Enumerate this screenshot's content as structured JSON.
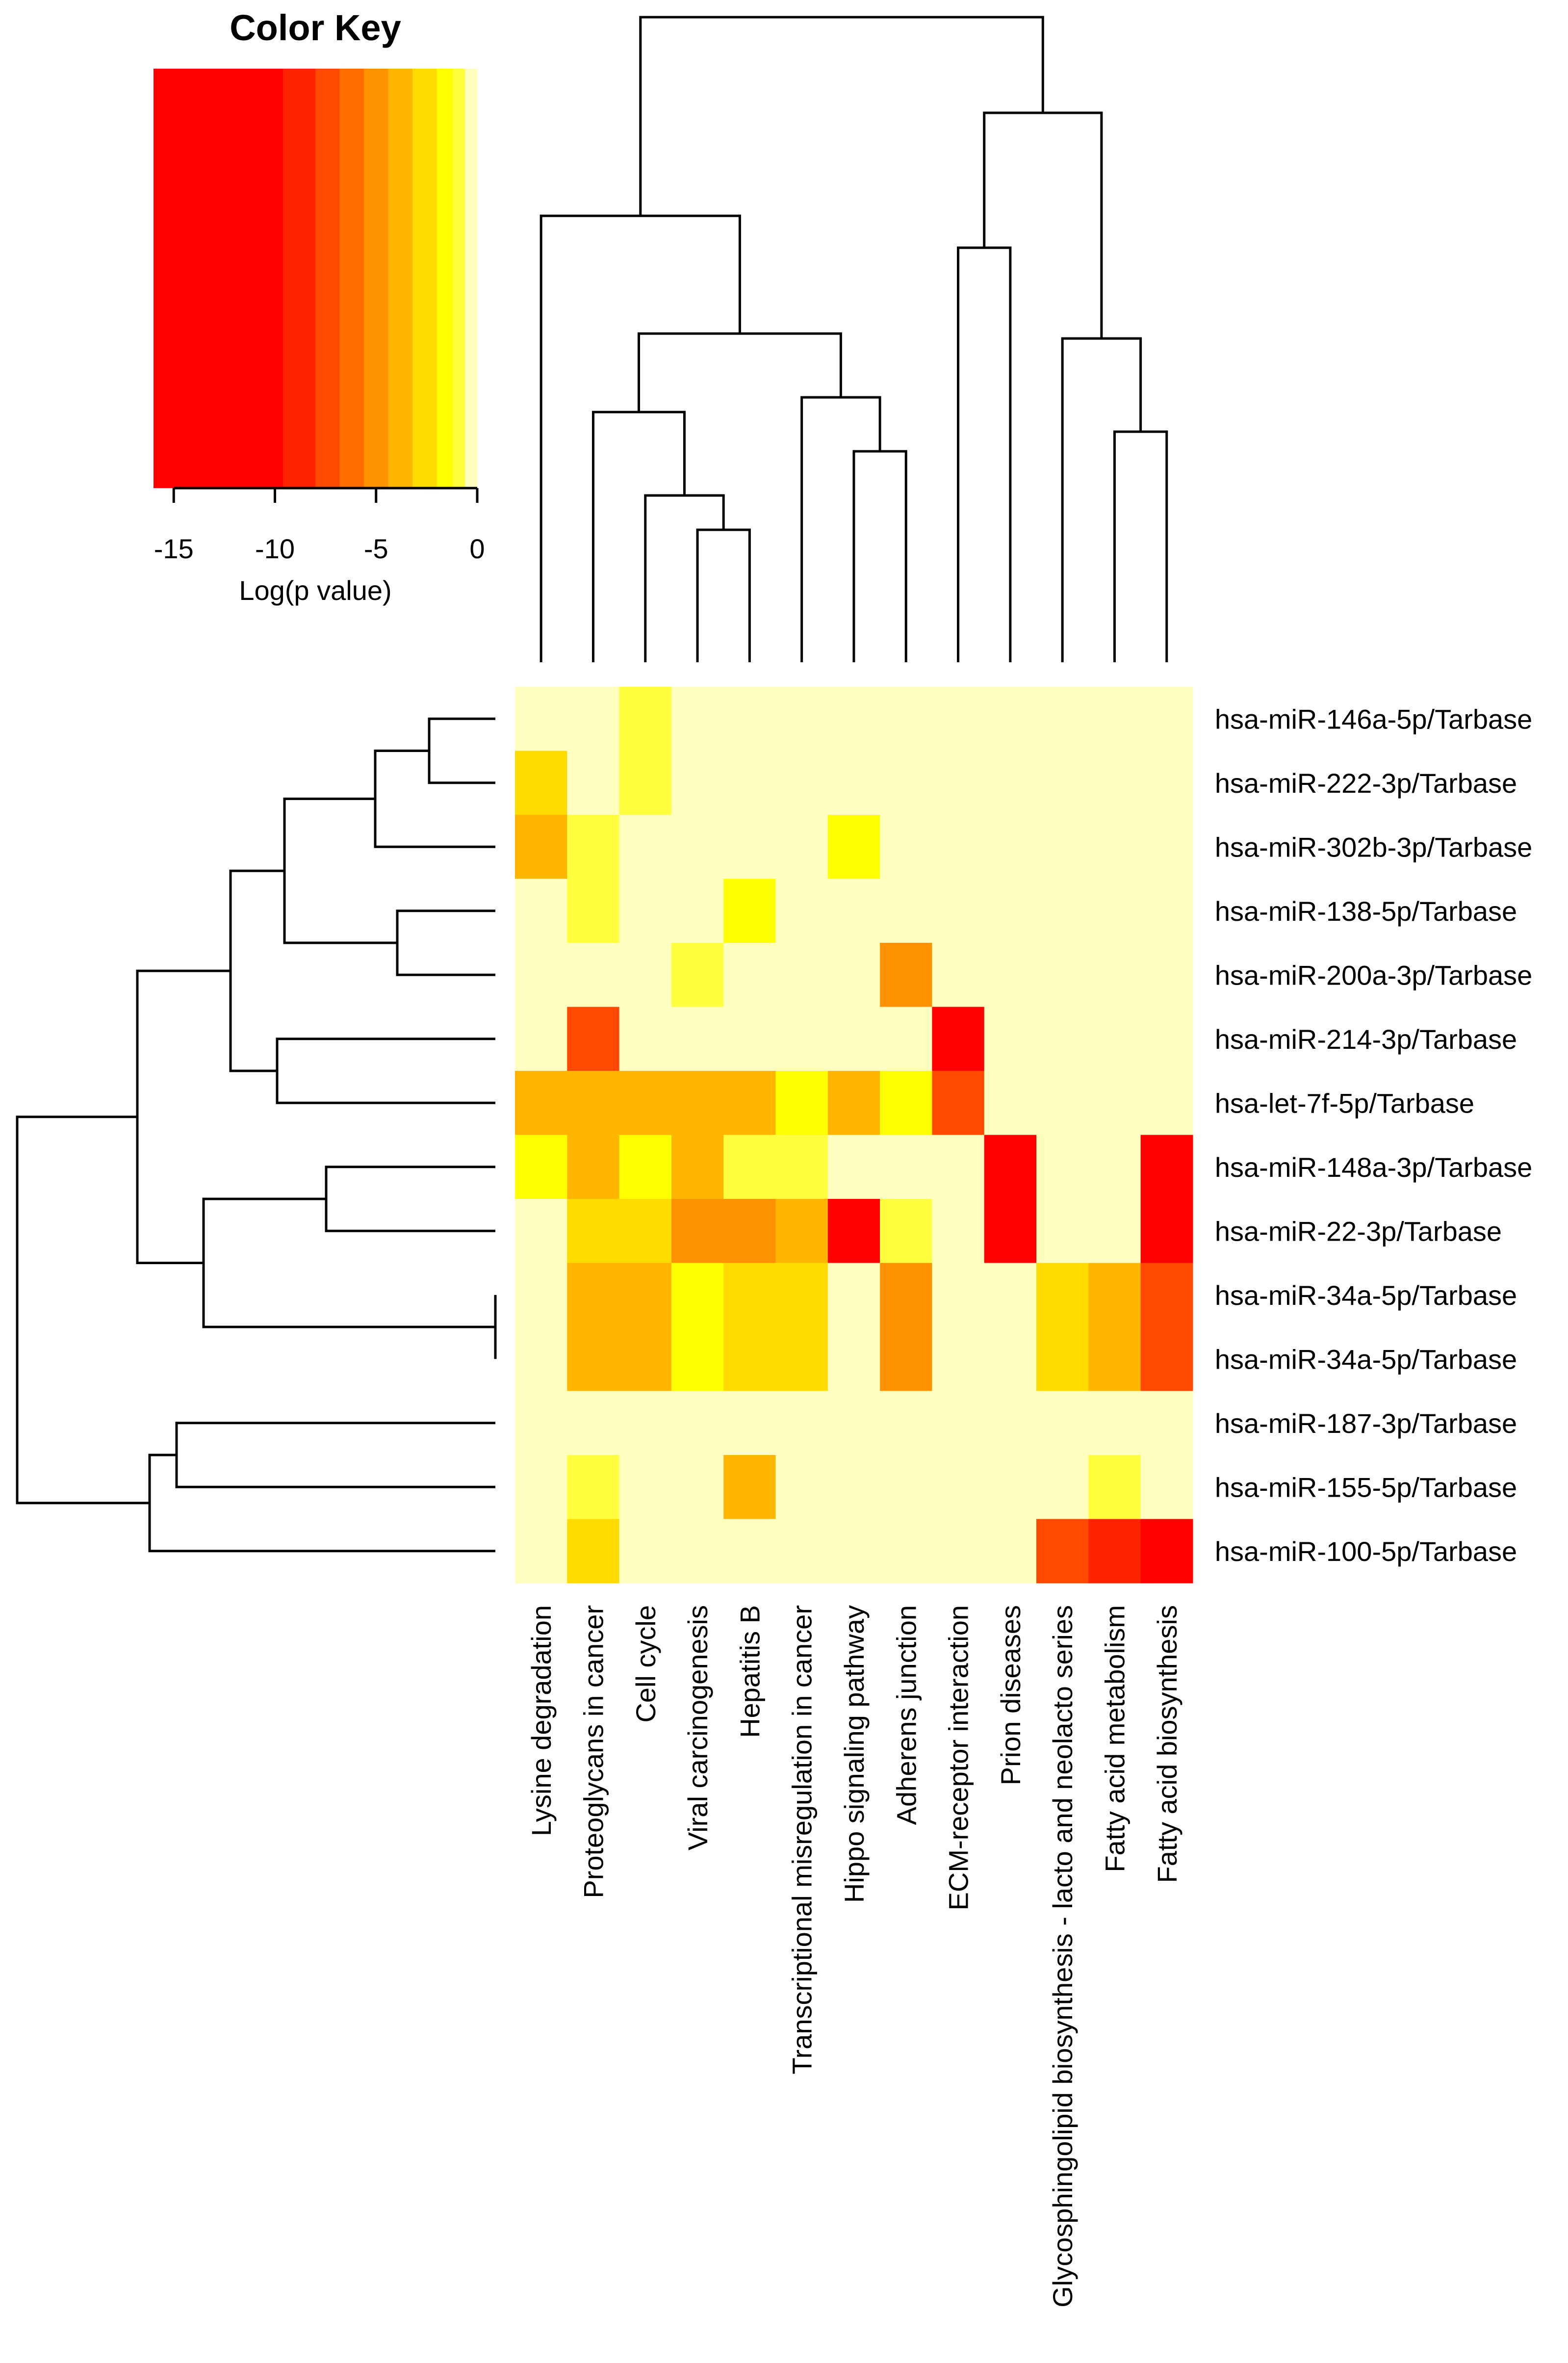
{
  "chart_data": {
    "type": "heatmap",
    "key": {
      "title": "Color Key",
      "xlabel": "Log(p value)",
      "range": [
        -16,
        0
      ],
      "ticks": [
        -15,
        -10,
        -5,
        0
      ],
      "bins": [
        {
          "from": -16,
          "to": -9.6,
          "color": "#ff0000"
        },
        {
          "from": -9.6,
          "to": -8.0,
          "color": "#ff2400"
        },
        {
          "from": -8.0,
          "to": -6.8,
          "color": "#ff4900"
        },
        {
          "from": -6.8,
          "to": -5.6,
          "color": "#ff6d00"
        },
        {
          "from": -5.6,
          "to": -4.4,
          "color": "#ff9200"
        },
        {
          "from": -4.4,
          "to": -3.2,
          "color": "#ffb600"
        },
        {
          "from": -3.2,
          "to": -2.0,
          "color": "#ffdb00"
        },
        {
          "from": -2.0,
          "to": -1.2,
          "color": "#ffff00"
        },
        {
          "from": -1.2,
          "to": -0.6,
          "color": "#ffff40"
        },
        {
          "from": -0.6,
          "to": 0,
          "color": "#ffffbf"
        }
      ]
    },
    "columns": [
      "Lysine degradation",
      "Proteoglycans in cancer",
      "Cell cycle",
      "Viral carcinogenesis",
      "Hepatitis B",
      "Transcriptional misregulation in cancer",
      "Hippo signaling pathway",
      "Adherens junction",
      "ECM-receptor interaction",
      "Prion diseases",
      "Glycosphingolipid biosynthesis - lacto and neolacto series",
      "Fatty acid metabolism",
      "Fatty acid biosynthesis"
    ],
    "rows": [
      "hsa-miR-146a-5p/Tarbase",
      "hsa-miR-222-3p/Tarbase",
      "hsa-miR-302b-3p/Tarbase",
      "hsa-miR-138-5p/Tarbase",
      "hsa-miR-200a-3p/Tarbase",
      "hsa-miR-214-3p/Tarbase",
      "hsa-let-7f-5p/Tarbase",
      "hsa-miR-148a-3p/Tarbase",
      "hsa-miR-22-3p/Tarbase",
      "hsa-miR-34a-5p/Tarbase",
      "hsa-miR-34a-5p/Tarbase",
      "hsa-miR-187-3p/Tarbase",
      "hsa-miR-155-5p/Tarbase",
      "hsa-miR-100-5p/Tarbase"
    ],
    "values": [
      [
        0,
        0,
        -1,
        0,
        0,
        0,
        0,
        0,
        0,
        0,
        0,
        0,
        0
      ],
      [
        -2.5,
        0,
        -1,
        0,
        0,
        0,
        0,
        0,
        0,
        0,
        0,
        0,
        0
      ],
      [
        -3.8,
        -1,
        0,
        0,
        0,
        0,
        -1.5,
        0,
        0,
        0,
        0,
        0,
        0
      ],
      [
        0,
        -1,
        0,
        0,
        -1.5,
        0,
        0,
        0,
        0,
        0,
        0,
        0,
        0
      ],
      [
        0,
        0,
        0,
        -1,
        0,
        0,
        0,
        -5,
        0,
        0,
        0,
        0,
        0
      ],
      [
        0,
        -7.5,
        0,
        0,
        0,
        0,
        0,
        0,
        -12,
        0,
        0,
        0,
        0
      ],
      [
        -4,
        -4,
        -4,
        -4,
        -4,
        -1.6,
        -4,
        -1.6,
        -7.5,
        0,
        0,
        0,
        0
      ],
      [
        -1.6,
        -3.5,
        -1.6,
        -3.5,
        -1,
        -1,
        0,
        0,
        0,
        -12,
        0,
        0,
        -12
      ],
      [
        0,
        -2.5,
        -2.5,
        -5,
        -5,
        -3.8,
        -12,
        -1,
        0,
        -12,
        0,
        0,
        -12
      ],
      [
        0,
        -3.8,
        -3.8,
        -1.6,
        -2.5,
        -2.5,
        0,
        -5,
        0,
        0,
        -2.5,
        -3.8,
        -7
      ],
      [
        0,
        -3.8,
        -3.8,
        -1.6,
        -2.5,
        -2.5,
        0,
        -5,
        0,
        0,
        -2.5,
        -3.8,
        -7
      ],
      [
        0,
        0,
        0,
        0,
        0,
        0,
        0,
        0,
        0,
        0,
        0,
        0,
        0
      ],
      [
        0,
        -1,
        0,
        0,
        -3.8,
        0,
        0,
        0,
        0,
        0,
        0,
        -1,
        0
      ],
      [
        0,
        -2.5,
        0,
        0,
        0,
        0,
        0,
        0,
        0,
        0,
        -7.5,
        -8.5,
        -12
      ]
    ],
    "column_order_note": "",
    "row_dendrogram": true,
    "column_dendrogram": true
  }
}
